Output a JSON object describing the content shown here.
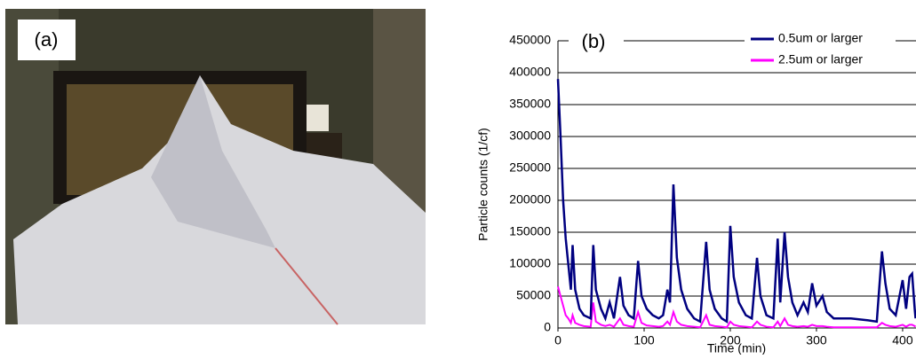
{
  "panel_a_label": "(a)",
  "chart_data": {
    "type": "line",
    "panel_label": "(b)",
    "y_label": "Particle counts (1/cf)",
    "x_label": "Time (min)",
    "x": [
      0,
      3,
      6,
      9,
      12,
      15,
      17,
      20,
      25,
      30,
      38,
      41,
      44,
      50,
      55,
      60,
      65,
      72,
      76,
      82,
      88,
      93,
      97,
      103,
      110,
      117,
      122,
      127,
      130,
      134,
      138,
      143,
      150,
      158,
      165,
      172,
      176,
      182,
      190,
      196,
      200,
      204,
      210,
      218,
      225,
      231,
      235,
      242,
      250,
      255,
      258,
      263,
      267,
      272,
      278,
      285,
      290,
      295,
      300,
      307,
      312,
      320,
      340,
      360,
      370,
      376,
      380,
      385,
      392,
      400,
      404,
      408,
      411,
      414,
      415
    ],
    "series": [
      {
        "name": "0.5um or larger",
        "color": "#000080",
        "values": [
          390000,
          300000,
          200000,
          140000,
          100000,
          60000,
          130000,
          60000,
          30000,
          20000,
          15000,
          130000,
          60000,
          30000,
          15000,
          40000,
          15000,
          80000,
          35000,
          20000,
          15000,
          105000,
          50000,
          30000,
          20000,
          15000,
          20000,
          60000,
          40000,
          225000,
          110000,
          60000,
          30000,
          15000,
          10000,
          135000,
          60000,
          30000,
          15000,
          10000,
          160000,
          80000,
          40000,
          20000,
          15000,
          110000,
          50000,
          20000,
          15000,
          140000,
          40000,
          150000,
          80000,
          40000,
          20000,
          40000,
          25000,
          70000,
          35000,
          50000,
          25000,
          15000,
          15000,
          12000,
          10000,
          120000,
          70000,
          30000,
          20000,
          75000,
          30000,
          80000,
          85000,
          30000,
          15000
        ]
      },
      {
        "name": "2.5um or larger",
        "color": "#ff00ff",
        "values": [
          65000,
          50000,
          35000,
          20000,
          15000,
          8000,
          20000,
          8000,
          5000,
          3000,
          2000,
          40000,
          10000,
          5000,
          3000,
          5000,
          2000,
          15000,
          5000,
          3000,
          2000,
          25000,
          8000,
          4000,
          3000,
          2000,
          3000,
          10000,
          5000,
          25000,
          10000,
          5000,
          3000,
          2000,
          1000,
          20000,
          5000,
          3000,
          2000,
          1000,
          10000,
          5000,
          3000,
          2000,
          1000,
          10000,
          5000,
          2000,
          1000,
          10000,
          3000,
          15000,
          5000,
          3000,
          2000,
          3000,
          2000,
          5000,
          3000,
          3000,
          2000,
          1000,
          1000,
          1000,
          1000,
          8000,
          5000,
          3000,
          2000,
          5000,
          2000,
          5000,
          5000,
          3000,
          2000
        ]
      }
    ],
    "xlim": [
      0,
      415
    ],
    "xticks": [
      0,
      100,
      200,
      300,
      400
    ],
    "ylim": [
      0,
      450000
    ],
    "yticks": [
      0,
      50000,
      100000,
      150000,
      200000,
      250000,
      300000,
      350000,
      400000,
      450000
    ],
    "grid": true
  }
}
